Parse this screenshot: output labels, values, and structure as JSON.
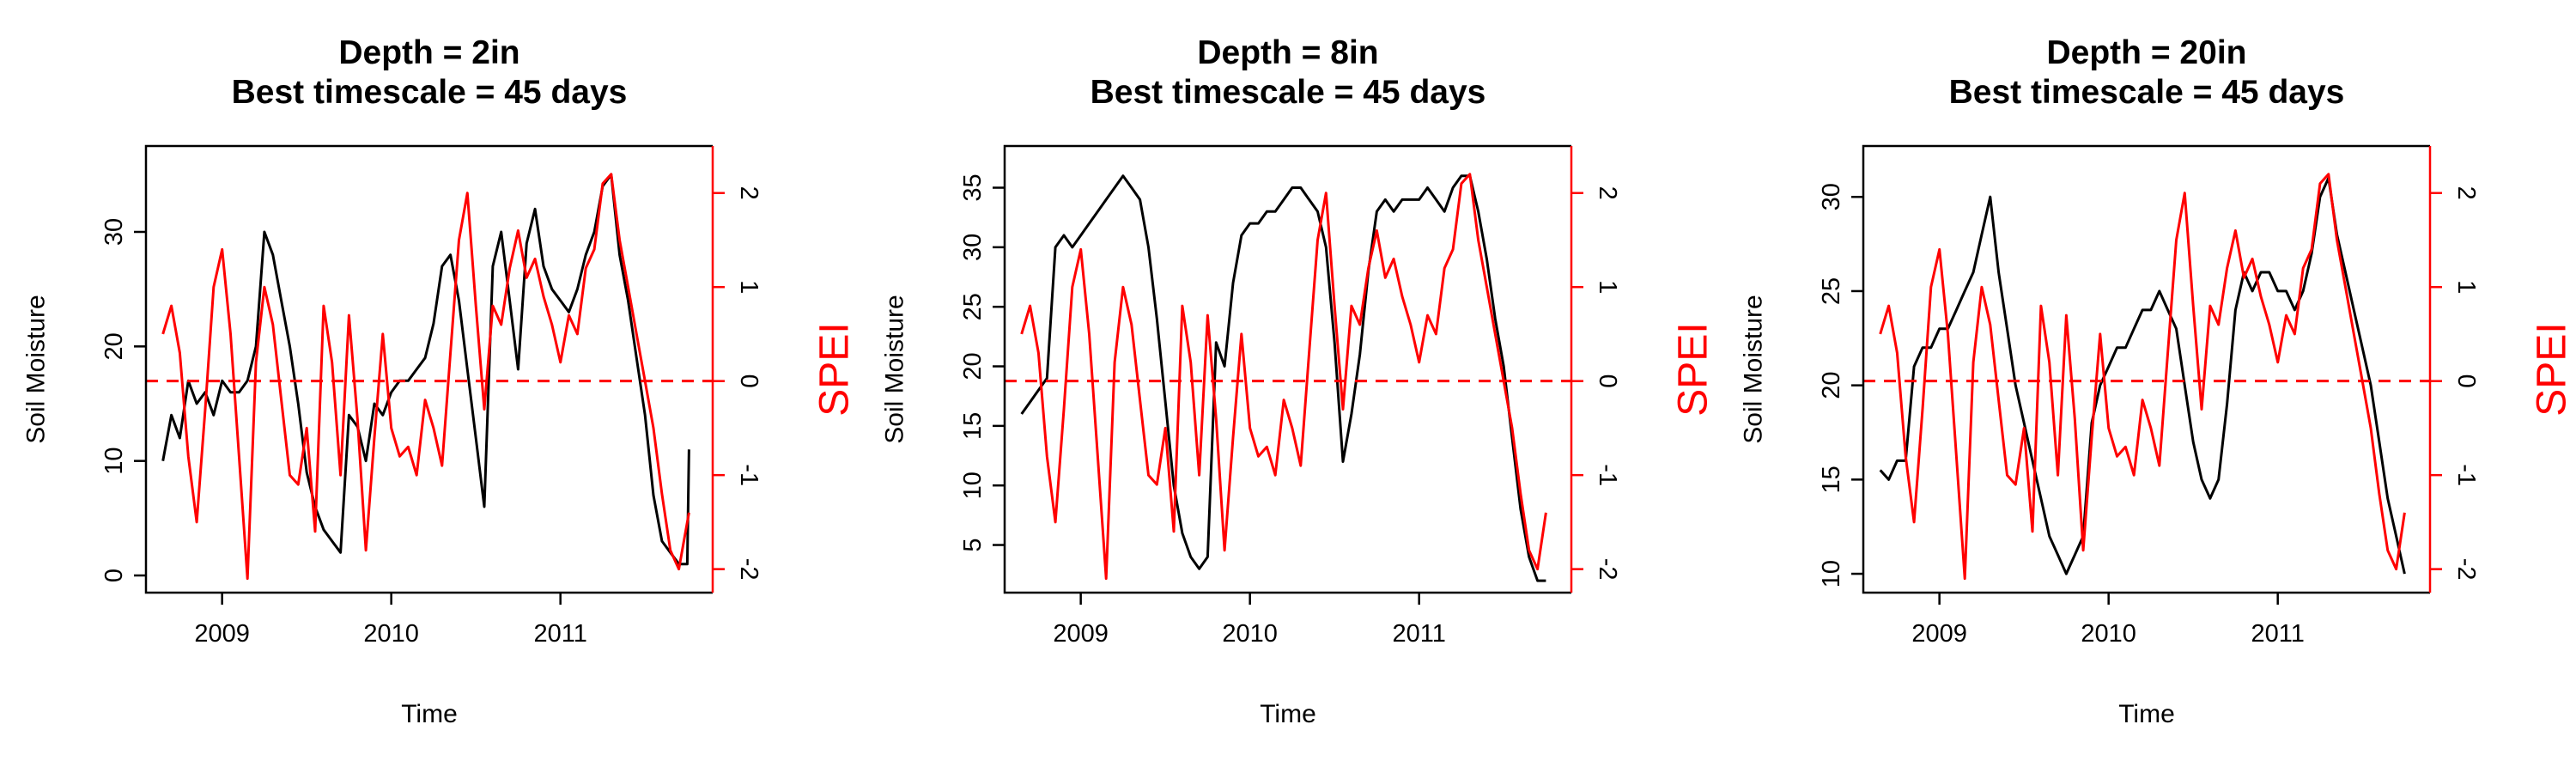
{
  "chart_data": [
    {
      "type": "line",
      "title": [
        "Depth = 2in",
        "Best timescale = 45 days"
      ],
      "xlabel": "Time",
      "ylabel": "Soil Moisture",
      "y2label": "SPEI",
      "xlim": [
        2008.55,
        2011.9
      ],
      "ylim": [
        -1.5,
        37.5
      ],
      "xticks": [
        2009,
        2010,
        2011
      ],
      "yticks": [
        0,
        10,
        20,
        30
      ],
      "y2lim": [
        -2.25,
        2.5
      ],
      "y2ticks": [
        -2,
        -1,
        0,
        1,
        2
      ],
      "ref_line": {
        "axis": "y2",
        "value": 0,
        "color": "#ff0000",
        "style": "dashed"
      },
      "series": [
        {
          "axis": "left",
          "color": "#000000",
          "x": [
            2008.65,
            2008.7,
            2008.75,
            2008.8,
            2008.85,
            2008.9,
            2008.95,
            2009.0,
            2009.05,
            2009.1,
            2009.15,
            2009.2,
            2009.25,
            2009.3,
            2009.35,
            2009.4,
            2009.45,
            2009.5,
            2009.55,
            2009.6,
            2009.65,
            2009.7,
            2009.75,
            2009.8,
            2009.85,
            2009.9,
            2009.95,
            2010.0,
            2010.05,
            2010.1,
            2010.15,
            2010.2,
            2010.25,
            2010.3,
            2010.35,
            2010.4,
            2010.45,
            2010.5,
            2010.55,
            2010.6,
            2010.65,
            2010.7,
            2010.75,
            2010.8,
            2010.85,
            2010.9,
            2010.95,
            2011.0,
            2011.05,
            2011.1,
            2011.15,
            2011.2,
            2011.25,
            2011.3,
            2011.35,
            2011.4,
            2011.45,
            2011.5,
            2011.55,
            2011.6,
            2011.65,
            2011.7,
            2011.75,
            2011.76
          ],
          "values": [
            10,
            14,
            12,
            17,
            15,
            16,
            14,
            17,
            16,
            16,
            17,
            20,
            30,
            28,
            24,
            20,
            15,
            9,
            6,
            4,
            3,
            2,
            14,
            13,
            10,
            15,
            14,
            16,
            17,
            17,
            18,
            19,
            22,
            27,
            28,
            24,
            18,
            12,
            6,
            27,
            30,
            24,
            18,
            29,
            32,
            27,
            25,
            24,
            23,
            25,
            28,
            30,
            34,
            35,
            28,
            24,
            19,
            14,
            7,
            3,
            2,
            1,
            1,
            11
          ]
        },
        {
          "axis": "right",
          "color": "#ff0000",
          "x": [
            2008.65,
            2008.7,
            2008.75,
            2008.8,
            2008.85,
            2008.9,
            2008.95,
            2009.0,
            2009.05,
            2009.1,
            2009.15,
            2009.2,
            2009.25,
            2009.3,
            2009.35,
            2009.4,
            2009.45,
            2009.5,
            2009.55,
            2009.6,
            2009.65,
            2009.7,
            2009.75,
            2009.8,
            2009.85,
            2009.9,
            2009.95,
            2010.0,
            2010.05,
            2010.1,
            2010.15,
            2010.2,
            2010.25,
            2010.3,
            2010.35,
            2010.4,
            2010.45,
            2010.5,
            2010.55,
            2010.6,
            2010.65,
            2010.7,
            2010.75,
            2010.8,
            2010.85,
            2010.9,
            2010.95,
            2011.0,
            2011.05,
            2011.1,
            2011.15,
            2011.2,
            2011.25,
            2011.3,
            2011.35,
            2011.4,
            2011.45,
            2011.5,
            2011.55,
            2011.6,
            2011.65,
            2011.7,
            2011.75,
            2011.76
          ],
          "values": [
            0.5,
            0.8,
            0.3,
            -0.8,
            -1.5,
            -0.3,
            1.0,
            1.4,
            0.5,
            -0.8,
            -2.1,
            0.2,
            1.0,
            0.6,
            -0.2,
            -1.0,
            -1.1,
            -0.5,
            -1.6,
            0.8,
            0.2,
            -1.0,
            0.7,
            -0.4,
            -1.8,
            -0.6,
            0.5,
            -0.5,
            -0.8,
            -0.7,
            -1.0,
            -0.2,
            -0.5,
            -0.9,
            0.3,
            1.5,
            2.0,
            0.8,
            -0.3,
            0.8,
            0.6,
            1.2,
            1.6,
            1.1,
            1.3,
            0.9,
            0.6,
            0.2,
            0.7,
            0.5,
            1.2,
            1.4,
            2.1,
            2.2,
            1.5,
            1.0,
            0.5,
            0.0,
            -0.5,
            -1.2,
            -1.8,
            -2.0,
            -1.5,
            -1.4
          ]
        }
      ]
    },
    {
      "type": "line",
      "title": [
        "Depth = 8in",
        "Best timescale = 45 days"
      ],
      "xlabel": "Time",
      "ylabel": "Soil Moisture",
      "y2label": "SPEI",
      "xlim": [
        2008.55,
        2011.9
      ],
      "ylim": [
        1,
        38.5
      ],
      "xticks": [
        2009,
        2010,
        2011
      ],
      "yticks": [
        5,
        10,
        15,
        20,
        25,
        30,
        35
      ],
      "y2lim": [
        -2.25,
        2.5
      ],
      "y2ticks": [
        -2,
        -1,
        0,
        1,
        2
      ],
      "ref_line": {
        "axis": "y2",
        "value": 0,
        "color": "#ff0000",
        "style": "dashed"
      },
      "series": [
        {
          "axis": "left",
          "color": "#000000",
          "x": [
            2008.65,
            2008.7,
            2008.75,
            2008.8,
            2008.85,
            2008.9,
            2008.95,
            2009.0,
            2009.05,
            2009.1,
            2009.15,
            2009.2,
            2009.25,
            2009.3,
            2009.35,
            2009.4,
            2009.45,
            2009.5,
            2009.55,
            2009.6,
            2009.65,
            2009.7,
            2009.75,
            2009.8,
            2009.85,
            2009.9,
            2009.95,
            2010.0,
            2010.05,
            2010.1,
            2010.15,
            2010.2,
            2010.25,
            2010.3,
            2010.35,
            2010.4,
            2010.45,
            2010.5,
            2010.55,
            2010.6,
            2010.65,
            2010.7,
            2010.75,
            2010.8,
            2010.85,
            2010.9,
            2010.95,
            2011.0,
            2011.05,
            2011.1,
            2011.15,
            2011.2,
            2011.25,
            2011.3,
            2011.35,
            2011.4,
            2011.45,
            2011.5,
            2011.55,
            2011.6,
            2011.65,
            2011.7,
            2011.75
          ],
          "values": [
            16,
            17,
            18,
            19,
            30,
            31,
            30,
            31,
            32,
            33,
            34,
            35,
            36,
            35,
            34,
            30,
            24,
            17,
            10,
            6,
            4,
            3,
            4,
            22,
            20,
            27,
            31,
            32,
            32,
            33,
            33,
            34,
            35,
            35,
            34,
            33,
            30,
            22,
            12,
            16,
            21,
            28,
            33,
            34,
            33,
            34,
            34,
            34,
            35,
            34,
            33,
            35,
            36,
            36,
            33,
            29,
            24,
            20,
            14,
            8,
            4,
            2,
            2
          ]
        },
        {
          "axis": "right",
          "color": "#ff0000",
          "x": [
            2008.65,
            2008.7,
            2008.75,
            2008.8,
            2008.85,
            2008.9,
            2008.95,
            2009.0,
            2009.05,
            2009.1,
            2009.15,
            2009.2,
            2009.25,
            2009.3,
            2009.35,
            2009.4,
            2009.45,
            2009.5,
            2009.55,
            2009.6,
            2009.65,
            2009.7,
            2009.75,
            2009.8,
            2009.85,
            2009.9,
            2009.95,
            2010.0,
            2010.05,
            2010.1,
            2010.15,
            2010.2,
            2010.25,
            2010.3,
            2010.35,
            2010.4,
            2010.45,
            2010.5,
            2010.55,
            2010.6,
            2010.65,
            2010.7,
            2010.75,
            2010.8,
            2010.85,
            2010.9,
            2010.95,
            2011.0,
            2011.05,
            2011.1,
            2011.15,
            2011.2,
            2011.25,
            2011.3,
            2011.35,
            2011.4,
            2011.45,
            2011.5,
            2011.55,
            2011.6,
            2011.65,
            2011.7,
            2011.75
          ],
          "values": [
            0.5,
            0.8,
            0.3,
            -0.8,
            -1.5,
            -0.3,
            1.0,
            1.4,
            0.5,
            -0.8,
            -2.1,
            0.2,
            1.0,
            0.6,
            -0.2,
            -1.0,
            -1.1,
            -0.5,
            -1.6,
            0.8,
            0.2,
            -1.0,
            0.7,
            -0.4,
            -1.8,
            -0.6,
            0.5,
            -0.5,
            -0.8,
            -0.7,
            -1.0,
            -0.2,
            -0.5,
            -0.9,
            0.3,
            1.5,
            2.0,
            0.8,
            -0.3,
            0.8,
            0.6,
            1.2,
            1.6,
            1.1,
            1.3,
            0.9,
            0.6,
            0.2,
            0.7,
            0.5,
            1.2,
            1.4,
            2.1,
            2.2,
            1.5,
            1.0,
            0.5,
            0.0,
            -0.5,
            -1.2,
            -1.8,
            -2.0,
            -1.4
          ]
        }
      ]
    },
    {
      "type": "line",
      "title": [
        "Depth = 20in",
        "Best timescale = 45 days"
      ],
      "xlabel": "Time",
      "ylabel": "Soil Moisture",
      "y2label": "SPEI",
      "xlim": [
        2008.55,
        2011.9
      ],
      "ylim": [
        9,
        32.7
      ],
      "xticks": [
        2009,
        2010,
        2011
      ],
      "yticks": [
        10,
        15,
        20,
        25,
        30
      ],
      "y2lim": [
        -2.25,
        2.5
      ],
      "y2ticks": [
        -2,
        -1,
        0,
        1,
        2
      ],
      "ref_line": {
        "axis": "y2",
        "value": 0,
        "color": "#ff0000",
        "style": "dashed"
      },
      "series": [
        {
          "axis": "left",
          "color": "#000000",
          "x": [
            2008.65,
            2008.7,
            2008.75,
            2008.8,
            2008.85,
            2008.9,
            2008.95,
            2009.0,
            2009.05,
            2009.1,
            2009.15,
            2009.2,
            2009.25,
            2009.3,
            2009.35,
            2009.4,
            2009.45,
            2009.5,
            2009.55,
            2009.6,
            2009.65,
            2009.7,
            2009.75,
            2009.8,
            2009.85,
            2009.9,
            2009.95,
            2010.0,
            2010.05,
            2010.1,
            2010.15,
            2010.2,
            2010.25,
            2010.3,
            2010.35,
            2010.4,
            2010.45,
            2010.5,
            2010.55,
            2010.6,
            2010.65,
            2010.7,
            2010.75,
            2010.8,
            2010.85,
            2010.9,
            2010.95,
            2011.0,
            2011.05,
            2011.1,
            2011.15,
            2011.2,
            2011.25,
            2011.3,
            2011.35,
            2011.4,
            2011.45,
            2011.5,
            2011.55,
            2011.6,
            2011.65,
            2011.7,
            2011.75
          ],
          "values": [
            15.5,
            15,
            16,
            16,
            21,
            22,
            22,
            23,
            23,
            24,
            25,
            26,
            28,
            30,
            26,
            23,
            20,
            18,
            16,
            14,
            12,
            11,
            10,
            11,
            12,
            18,
            20,
            21,
            22,
            22,
            23,
            24,
            24,
            25,
            24,
            23,
            20,
            17,
            15,
            14,
            15,
            19,
            24,
            26,
            25,
            26,
            26,
            25,
            25,
            24,
            25,
            27,
            30,
            31,
            28,
            26,
            24,
            22,
            20,
            17,
            14,
            12,
            10
          ]
        },
        {
          "axis": "right",
          "color": "#ff0000",
          "x": [
            2008.65,
            2008.7,
            2008.75,
            2008.8,
            2008.85,
            2008.9,
            2008.95,
            2009.0,
            2009.05,
            2009.1,
            2009.15,
            2009.2,
            2009.25,
            2009.3,
            2009.35,
            2009.4,
            2009.45,
            2009.5,
            2009.55,
            2009.6,
            2009.65,
            2009.7,
            2009.75,
            2009.8,
            2009.85,
            2009.9,
            2009.95,
            2010.0,
            2010.05,
            2010.1,
            2010.15,
            2010.2,
            2010.25,
            2010.3,
            2010.35,
            2010.4,
            2010.45,
            2010.5,
            2010.55,
            2010.6,
            2010.65,
            2010.7,
            2010.75,
            2010.8,
            2010.85,
            2010.9,
            2010.95,
            2011.0,
            2011.05,
            2011.1,
            2011.15,
            2011.2,
            2011.25,
            2011.3,
            2011.35,
            2011.4,
            2011.45,
            2011.5,
            2011.55,
            2011.6,
            2011.65,
            2011.7,
            2011.75
          ],
          "values": [
            0.5,
            0.8,
            0.3,
            -0.8,
            -1.5,
            -0.3,
            1.0,
            1.4,
            0.5,
            -0.8,
            -2.1,
            0.2,
            1.0,
            0.6,
            -0.2,
            -1.0,
            -1.1,
            -0.5,
            -1.6,
            0.8,
            0.2,
            -1.0,
            0.7,
            -0.4,
            -1.8,
            -0.6,
            0.5,
            -0.5,
            -0.8,
            -0.7,
            -1.0,
            -0.2,
            -0.5,
            -0.9,
            0.3,
            1.5,
            2.0,
            0.8,
            -0.3,
            0.8,
            0.6,
            1.2,
            1.6,
            1.1,
            1.3,
            0.9,
            0.6,
            0.2,
            0.7,
            0.5,
            1.2,
            1.4,
            2.1,
            2.2,
            1.5,
            1.0,
            0.5,
            0.0,
            -0.5,
            -1.2,
            -1.8,
            -2.0,
            -1.4
          ]
        }
      ]
    }
  ]
}
